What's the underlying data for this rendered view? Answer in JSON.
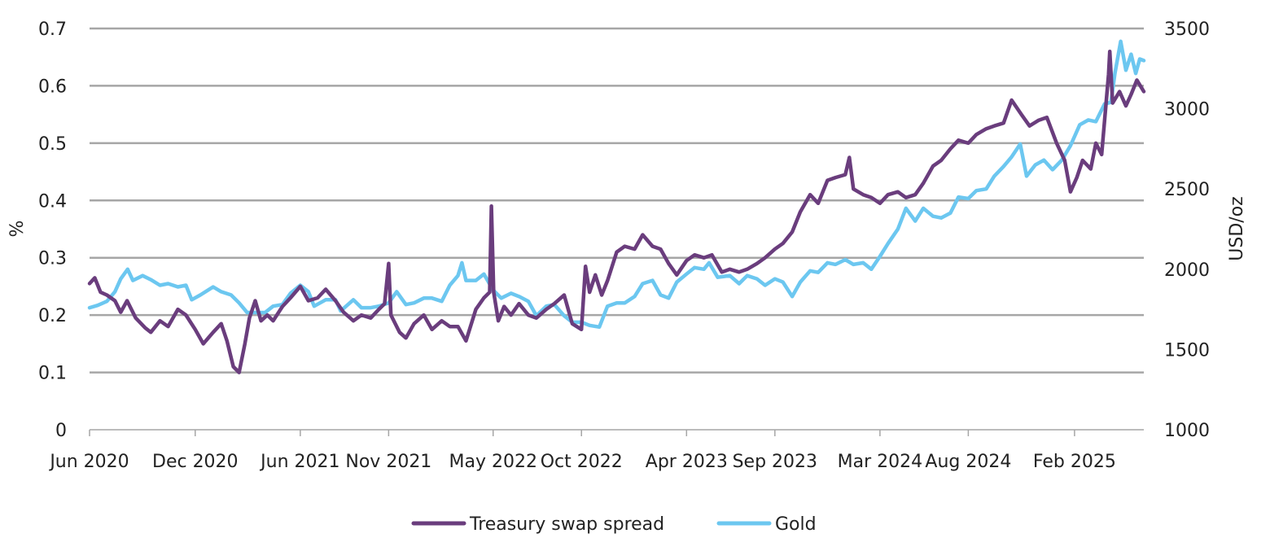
{
  "chart_data": {
    "type": "line",
    "title": "",
    "xlabel": "",
    "ylabel_left": "%",
    "ylabel_right": "USD/oz",
    "ylim_left": [
      0,
      0.7
    ],
    "ylim_right": [
      1000,
      3500
    ],
    "x_range": [
      "2020-06-01",
      "2025-06-01"
    ],
    "yticks_left": [
      "0",
      "0.1",
      "0.2",
      "0.3",
      "0.4",
      "0.5",
      "0.6",
      "0.7"
    ],
    "yticks_right": [
      "1000",
      "1500",
      "2000",
      "2500",
      "3000",
      "3500"
    ],
    "xticks": [
      {
        "label": "Jun 2020",
        "date": "2020-06-01"
      },
      {
        "label": "Dec 2020",
        "date": "2020-12-01"
      },
      {
        "label": "Jun 2021",
        "date": "2021-06-01"
      },
      {
        "label": "Nov 2021",
        "date": "2021-11-01"
      },
      {
        "label": "May 2022",
        "date": "2022-05-01"
      },
      {
        "label": "Oct 2022",
        "date": "2022-10-01"
      },
      {
        "label": "Apr 2023",
        "date": "2023-04-01"
      },
      {
        "label": "Sep 2023",
        "date": "2023-09-01"
      },
      {
        "label": "Mar 2024",
        "date": "2024-03-01"
      },
      {
        "label": "Aug 2024",
        "date": "2024-08-01"
      },
      {
        "label": "Feb 2025",
        "date": "2025-02-01"
      }
    ],
    "grid": true,
    "legend_position": "bottom-center",
    "series": [
      {
        "name": "Treasury swap spread",
        "axis": "left",
        "color": "#6a3d7d",
        "points": [
          [
            "2020-06-01",
            0.255
          ],
          [
            "2020-06-10",
            0.265
          ],
          [
            "2020-06-20",
            0.24
          ],
          [
            "2020-07-01",
            0.235
          ],
          [
            "2020-07-15",
            0.225
          ],
          [
            "2020-07-25",
            0.205
          ],
          [
            "2020-08-05",
            0.225
          ],
          [
            "2020-08-20",
            0.195
          ],
          [
            "2020-09-05",
            0.178
          ],
          [
            "2020-09-15",
            0.17
          ],
          [
            "2020-10-01",
            0.19
          ],
          [
            "2020-10-15",
            0.18
          ],
          [
            "2020-11-01",
            0.21
          ],
          [
            "2020-11-15",
            0.2
          ],
          [
            "2020-12-01",
            0.175
          ],
          [
            "2020-12-15",
            0.15
          ],
          [
            "2021-01-01",
            0.17
          ],
          [
            "2021-01-15",
            0.185
          ],
          [
            "2021-01-25",
            0.155
          ],
          [
            "2021-02-05",
            0.11
          ],
          [
            "2021-02-15",
            0.1
          ],
          [
            "2021-02-25",
            0.15
          ],
          [
            "2021-03-05",
            0.195
          ],
          [
            "2021-03-15",
            0.225
          ],
          [
            "2021-03-25",
            0.19
          ],
          [
            "2021-04-05",
            0.2
          ],
          [
            "2021-04-15",
            0.19
          ],
          [
            "2021-05-01",
            0.215
          ],
          [
            "2021-05-15",
            0.23
          ],
          [
            "2021-06-01",
            0.25
          ],
          [
            "2021-06-15",
            0.225
          ],
          [
            "2021-07-01",
            0.23
          ],
          [
            "2021-07-15",
            0.245
          ],
          [
            "2021-08-01",
            0.225
          ],
          [
            "2021-08-15",
            0.205
          ],
          [
            "2021-09-01",
            0.19
          ],
          [
            "2021-09-15",
            0.2
          ],
          [
            "2021-10-01",
            0.195
          ],
          [
            "2021-10-15",
            0.21
          ],
          [
            "2021-10-25",
            0.22
          ],
          [
            "2021-11-01",
            0.29
          ],
          [
            "2021-11-05",
            0.2
          ],
          [
            "2021-11-20",
            0.17
          ],
          [
            "2021-12-01",
            0.16
          ],
          [
            "2021-12-15",
            0.185
          ],
          [
            "2022-01-01",
            0.2
          ],
          [
            "2022-01-15",
            0.175
          ],
          [
            "2022-02-01",
            0.19
          ],
          [
            "2022-02-15",
            0.18
          ],
          [
            "2022-03-01",
            0.18
          ],
          [
            "2022-03-15",
            0.155
          ],
          [
            "2022-04-01",
            0.21
          ],
          [
            "2022-04-15",
            0.23
          ],
          [
            "2022-04-25",
            0.24
          ],
          [
            "2022-04-28",
            0.39
          ],
          [
            "2022-05-02",
            0.24
          ],
          [
            "2022-05-10",
            0.19
          ],
          [
            "2022-05-20",
            0.215
          ],
          [
            "2022-06-01",
            0.2
          ],
          [
            "2022-06-15",
            0.22
          ],
          [
            "2022-07-01",
            0.2
          ],
          [
            "2022-07-15",
            0.195
          ],
          [
            "2022-08-01",
            0.21
          ],
          [
            "2022-08-15",
            0.22
          ],
          [
            "2022-09-01",
            0.235
          ],
          [
            "2022-09-15",
            0.185
          ],
          [
            "2022-10-01",
            0.175
          ],
          [
            "2022-10-08",
            0.285
          ],
          [
            "2022-10-15",
            0.24
          ],
          [
            "2022-10-25",
            0.27
          ],
          [
            "2022-11-05",
            0.235
          ],
          [
            "2022-11-15",
            0.26
          ],
          [
            "2022-12-01",
            0.31
          ],
          [
            "2022-12-15",
            0.32
          ],
          [
            "2023-01-01",
            0.315
          ],
          [
            "2023-01-15",
            0.34
          ],
          [
            "2023-02-01",
            0.32
          ],
          [
            "2023-02-15",
            0.315
          ],
          [
            "2023-03-01",
            0.29
          ],
          [
            "2023-03-15",
            0.27
          ],
          [
            "2023-04-01",
            0.295
          ],
          [
            "2023-04-15",
            0.305
          ],
          [
            "2023-05-01",
            0.3
          ],
          [
            "2023-05-15",
            0.305
          ],
          [
            "2023-06-01",
            0.275
          ],
          [
            "2023-06-15",
            0.28
          ],
          [
            "2023-07-01",
            0.275
          ],
          [
            "2023-07-15",
            0.28
          ],
          [
            "2023-08-01",
            0.29
          ],
          [
            "2023-08-15",
            0.3
          ],
          [
            "2023-09-01",
            0.315
          ],
          [
            "2023-09-15",
            0.325
          ],
          [
            "2023-10-01",
            0.345
          ],
          [
            "2023-10-15",
            0.38
          ],
          [
            "2023-11-01",
            0.41
          ],
          [
            "2023-11-15",
            0.395
          ],
          [
            "2023-12-01",
            0.435
          ],
          [
            "2023-12-15",
            0.44
          ],
          [
            "2024-01-01",
            0.445
          ],
          [
            "2024-01-08",
            0.475
          ],
          [
            "2024-01-15",
            0.42
          ],
          [
            "2024-02-01",
            0.41
          ],
          [
            "2024-02-15",
            0.405
          ],
          [
            "2024-03-01",
            0.395
          ],
          [
            "2024-03-15",
            0.41
          ],
          [
            "2024-04-01",
            0.415
          ],
          [
            "2024-04-15",
            0.405
          ],
          [
            "2024-05-01",
            0.41
          ],
          [
            "2024-05-15",
            0.43
          ],
          [
            "2024-06-01",
            0.46
          ],
          [
            "2024-06-15",
            0.47
          ],
          [
            "2024-07-01",
            0.49
          ],
          [
            "2024-07-15",
            0.505
          ],
          [
            "2024-08-01",
            0.5
          ],
          [
            "2024-08-15",
            0.515
          ],
          [
            "2024-09-01",
            0.525
          ],
          [
            "2024-09-15",
            0.53
          ],
          [
            "2024-10-01",
            0.535
          ],
          [
            "2024-10-15",
            0.575
          ],
          [
            "2024-11-01",
            0.55
          ],
          [
            "2024-11-15",
            0.53
          ],
          [
            "2024-12-01",
            0.54
          ],
          [
            "2024-12-15",
            0.545
          ],
          [
            "2025-01-01",
            0.5
          ],
          [
            "2025-01-15",
            0.47
          ],
          [
            "2025-01-25",
            0.415
          ],
          [
            "2025-02-05",
            0.44
          ],
          [
            "2025-02-15",
            0.47
          ],
          [
            "2025-03-01",
            0.455
          ],
          [
            "2025-03-10",
            0.5
          ],
          [
            "2025-03-20",
            0.48
          ],
          [
            "2025-04-01",
            0.62
          ],
          [
            "2025-04-03",
            0.66
          ],
          [
            "2025-04-08",
            0.57
          ],
          [
            "2025-04-20",
            0.59
          ],
          [
            "2025-05-01",
            0.565
          ],
          [
            "2025-05-10",
            0.585
          ],
          [
            "2025-05-20",
            0.61
          ],
          [
            "2025-06-01",
            0.59
          ]
        ]
      },
      {
        "name": "Gold",
        "axis": "right",
        "color": "#6cc7f0",
        "points": [
          [
            "2020-06-01",
            1760
          ],
          [
            "2020-06-15",
            1775
          ],
          [
            "2020-07-01",
            1800
          ],
          [
            "2020-07-15",
            1860
          ],
          [
            "2020-07-25",
            1940
          ],
          [
            "2020-08-06",
            2000
          ],
          [
            "2020-08-15",
            1930
          ],
          [
            "2020-09-01",
            1960
          ],
          [
            "2020-09-15",
            1935
          ],
          [
            "2020-10-01",
            1900
          ],
          [
            "2020-10-15",
            1910
          ],
          [
            "2020-11-01",
            1890
          ],
          [
            "2020-11-15",
            1900
          ],
          [
            "2020-11-25",
            1810
          ],
          [
            "2020-12-10",
            1840
          ],
          [
            "2021-01-01",
            1890
          ],
          [
            "2021-01-15",
            1860
          ],
          [
            "2021-02-01",
            1840
          ],
          [
            "2021-02-15",
            1790
          ],
          [
            "2021-03-01",
            1730
          ],
          [
            "2021-03-15",
            1730
          ],
          [
            "2021-04-01",
            1730
          ],
          [
            "2021-04-15",
            1770
          ],
          [
            "2021-05-01",
            1780
          ],
          [
            "2021-05-15",
            1850
          ],
          [
            "2021-06-01",
            1900
          ],
          [
            "2021-06-15",
            1860
          ],
          [
            "2021-06-25",
            1770
          ],
          [
            "2021-07-15",
            1810
          ],
          [
            "2021-08-01",
            1810
          ],
          [
            "2021-08-10",
            1740
          ],
          [
            "2021-09-01",
            1810
          ],
          [
            "2021-09-15",
            1760
          ],
          [
            "2021-10-01",
            1760
          ],
          [
            "2021-10-15",
            1770
          ],
          [
            "2021-11-01",
            1790
          ],
          [
            "2021-11-15",
            1860
          ],
          [
            "2021-12-01",
            1780
          ],
          [
            "2021-12-15",
            1790
          ],
          [
            "2022-01-01",
            1820
          ],
          [
            "2022-01-15",
            1820
          ],
          [
            "2022-02-01",
            1800
          ],
          [
            "2022-02-15",
            1900
          ],
          [
            "2022-03-01",
            1960
          ],
          [
            "2022-03-08",
            2040
          ],
          [
            "2022-03-15",
            1930
          ],
          [
            "2022-04-01",
            1930
          ],
          [
            "2022-04-15",
            1970
          ],
          [
            "2022-05-01",
            1870
          ],
          [
            "2022-05-15",
            1820
          ],
          [
            "2022-06-01",
            1850
          ],
          [
            "2022-06-15",
            1830
          ],
          [
            "2022-07-01",
            1800
          ],
          [
            "2022-07-15",
            1710
          ],
          [
            "2022-08-01",
            1770
          ],
          [
            "2022-08-15",
            1780
          ],
          [
            "2022-09-01",
            1710
          ],
          [
            "2022-09-15",
            1670
          ],
          [
            "2022-10-01",
            1670
          ],
          [
            "2022-10-15",
            1650
          ],
          [
            "2022-11-01",
            1640
          ],
          [
            "2022-11-15",
            1770
          ],
          [
            "2022-12-01",
            1790
          ],
          [
            "2022-12-15",
            1790
          ],
          [
            "2023-01-01",
            1830
          ],
          [
            "2023-01-15",
            1910
          ],
          [
            "2023-02-01",
            1930
          ],
          [
            "2023-02-15",
            1840
          ],
          [
            "2023-03-01",
            1820
          ],
          [
            "2023-03-15",
            1920
          ],
          [
            "2023-04-01",
            1970
          ],
          [
            "2023-04-15",
            2010
          ],
          [
            "2023-05-01",
            2000
          ],
          [
            "2023-05-10",
            2040
          ],
          [
            "2023-05-25",
            1950
          ],
          [
            "2023-06-15",
            1960
          ],
          [
            "2023-07-01",
            1910
          ],
          [
            "2023-07-15",
            1960
          ],
          [
            "2023-08-01",
            1940
          ],
          [
            "2023-08-15",
            1900
          ],
          [
            "2023-09-01",
            1940
          ],
          [
            "2023-09-15",
            1920
          ],
          [
            "2023-10-01",
            1830
          ],
          [
            "2023-10-15",
            1920
          ],
          [
            "2023-11-01",
            1990
          ],
          [
            "2023-11-15",
            1980
          ],
          [
            "2023-12-01",
            2040
          ],
          [
            "2023-12-15",
            2030
          ],
          [
            "2024-01-01",
            2060
          ],
          [
            "2024-01-15",
            2030
          ],
          [
            "2024-02-01",
            2040
          ],
          [
            "2024-02-15",
            2000
          ],
          [
            "2024-03-01",
            2080
          ],
          [
            "2024-03-15",
            2160
          ],
          [
            "2024-04-01",
            2250
          ],
          [
            "2024-04-15",
            2380
          ],
          [
            "2024-05-01",
            2300
          ],
          [
            "2024-05-15",
            2380
          ],
          [
            "2024-06-01",
            2330
          ],
          [
            "2024-06-15",
            2320
          ],
          [
            "2024-07-01",
            2350
          ],
          [
            "2024-07-15",
            2450
          ],
          [
            "2024-08-01",
            2440
          ],
          [
            "2024-08-15",
            2490
          ],
          [
            "2024-09-01",
            2500
          ],
          [
            "2024-09-15",
            2580
          ],
          [
            "2024-10-01",
            2640
          ],
          [
            "2024-10-15",
            2700
          ],
          [
            "2024-10-30",
            2780
          ],
          [
            "2024-11-10",
            2580
          ],
          [
            "2024-11-25",
            2650
          ],
          [
            "2024-12-10",
            2680
          ],
          [
            "2024-12-25",
            2620
          ],
          [
            "2025-01-10",
            2680
          ],
          [
            "2025-01-25",
            2770
          ],
          [
            "2025-02-10",
            2900
          ],
          [
            "2025-02-25",
            2930
          ],
          [
            "2025-03-10",
            2920
          ],
          [
            "2025-03-25",
            3030
          ],
          [
            "2025-04-05",
            3040
          ],
          [
            "2025-04-12",
            3220
          ],
          [
            "2025-04-22",
            3420
          ],
          [
            "2025-05-01",
            3240
          ],
          [
            "2025-05-10",
            3340
          ],
          [
            "2025-05-18",
            3220
          ],
          [
            "2025-05-25",
            3310
          ],
          [
            "2025-06-01",
            3300
          ]
        ]
      }
    ]
  }
}
